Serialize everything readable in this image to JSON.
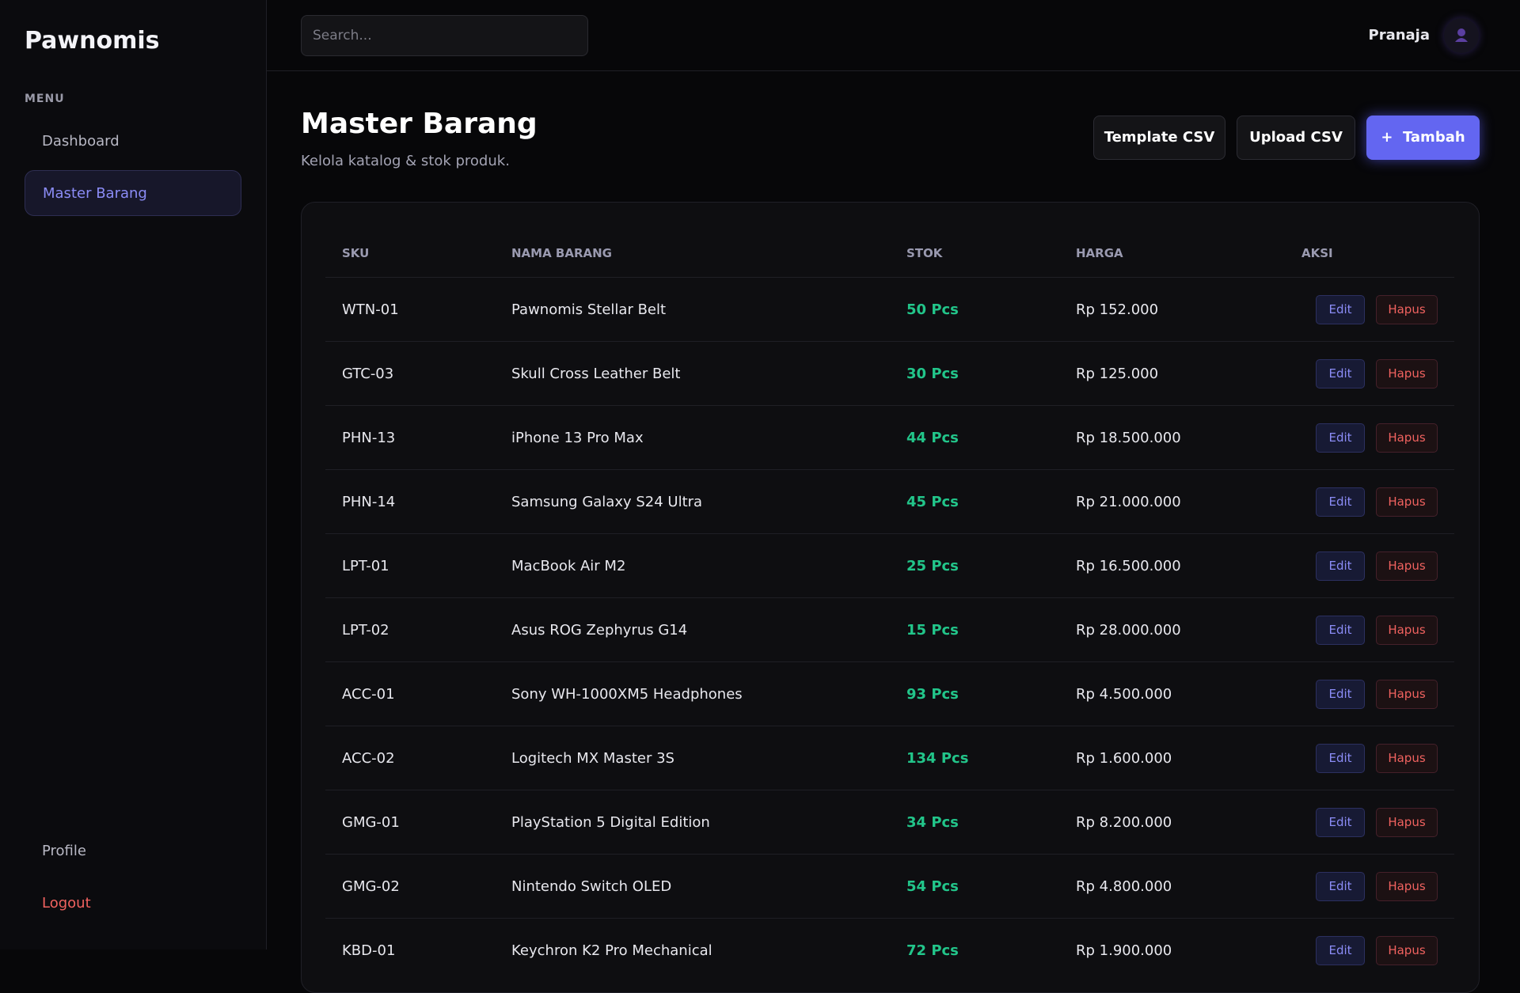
{
  "sidebar": {
    "brand": "Pawnomis",
    "menu_label": "MENU",
    "nav": [
      "Dashboard",
      "Master Barang"
    ],
    "bottom_nav": [
      "Profile",
      "Logout"
    ]
  },
  "topbar": {
    "search_placeholder": "Search...",
    "user": "Pranaja"
  },
  "header": {
    "title": "Master Barang",
    "subtitle": "Kelola katalog & stok produk.",
    "buttons": [
      "Template CSV",
      "Upload CSV",
      "Tambah"
    ],
    "add_icon": "+"
  },
  "table": {
    "columns": [
      "SKU",
      "NAMA BARANG",
      "STOK",
      "HARGA",
      "AKSI"
    ],
    "actions": [
      "Edit",
      "Hapus"
    ],
    "rows": [
      [
        "WTN-01",
        "Pawnomis Stellar Belt",
        "50 Pcs",
        "Rp 152.000"
      ],
      [
        "GTC-03",
        "Skull Cross Leather Belt",
        "30 Pcs",
        "Rp 125.000"
      ],
      [
        "PHN-13",
        "iPhone 13 Pro Max",
        "44 Pcs",
        "Rp 18.500.000"
      ],
      [
        "PHN-14",
        "Samsung Galaxy S24 Ultra",
        "45 Pcs",
        "Rp 21.000.000"
      ],
      [
        "LPT-01",
        "MacBook Air M2",
        "25 Pcs",
        "Rp 16.500.000"
      ],
      [
        "LPT-02",
        "Asus ROG Zephyrus G14",
        "15 Pcs",
        "Rp 28.000.000"
      ],
      [
        "ACC-01",
        "Sony WH-1000XM5 Headphones",
        "93 Pcs",
        "Rp 4.500.000"
      ],
      [
        "ACC-02",
        "Logitech MX Master 3S",
        "134 Pcs",
        "Rp 1.600.000"
      ],
      [
        "GMG-01",
        "PlayStation 5 Digital Edition",
        "34 Pcs",
        "Rp 8.200.000"
      ],
      [
        "GMG-02",
        "Nintendo Switch OLED",
        "54 Pcs",
        "Rp 4.800.000"
      ],
      [
        "KBD-01",
        "Keychron K2 Pro Mechanical",
        "72 Pcs",
        "Rp 1.900.000"
      ]
    ]
  }
}
